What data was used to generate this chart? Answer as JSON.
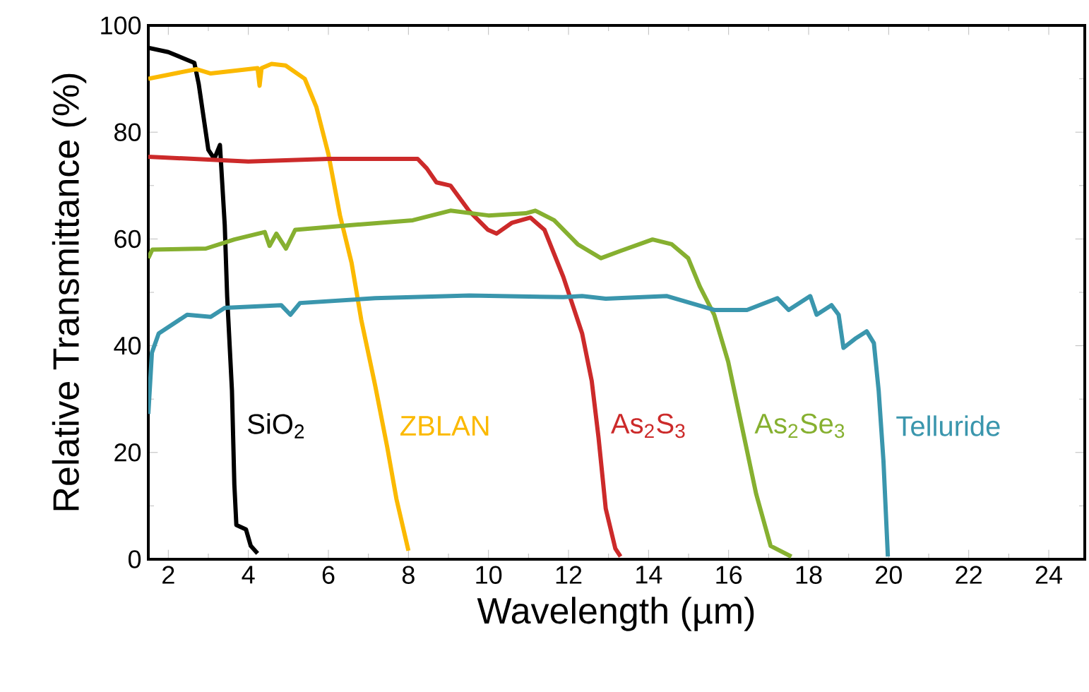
{
  "chart_data": {
    "type": "line",
    "xlabel": "Wavelength (µm)",
    "ylabel": "Relative Transmittance (%)",
    "xlim": [
      1.5,
      24.9
    ],
    "ylim": [
      0,
      100
    ],
    "xticks": [
      2,
      4,
      6,
      8,
      10,
      12,
      14,
      16,
      18,
      20,
      22,
      24
    ],
    "yticks": [
      0,
      20,
      40,
      60,
      80,
      100
    ],
    "grid": false,
    "legend": false,
    "marker": "none",
    "line_style": "solid",
    "series": [
      {
        "name": "SiO$_{2}$",
        "color": "#000000",
        "x": [
          1.5,
          2.0,
          2.65,
          2.76,
          3.0,
          3.15,
          3.29,
          3.41,
          3.47,
          3.59,
          3.65,
          3.7,
          3.94,
          4.06,
          4.23
        ],
        "values": [
          95.8,
          95,
          93,
          89,
          76.7,
          75,
          77.6,
          62.6,
          49.3,
          31.6,
          14,
          6.4,
          5.6,
          2.5,
          1.1
        ]
      },
      {
        "name": "ZBLAN",
        "color": "#fbb900",
        "x": [
          1.5,
          2.7,
          3.06,
          4.23,
          4.28,
          4.33,
          4.58,
          4.93,
          5.41,
          5.7,
          6.0,
          6.29,
          6.58,
          6.82,
          7.17,
          7.47,
          7.7,
          8.0
        ],
        "values": [
          90,
          91.8,
          91,
          92,
          88.7,
          92,
          92.8,
          92.5,
          90,
          84.7,
          75.9,
          64.4,
          55.5,
          44.9,
          32.5,
          21,
          11.3,
          1.6
        ]
      },
      {
        "name": "As$_{2}$S$_{3}$",
        "color": "#cc2a2a",
        "x": [
          1.5,
          4.0,
          6.0,
          8.23,
          8.46,
          8.7,
          9.05,
          9.51,
          9.99,
          10.2,
          10.58,
          11.05,
          11.4,
          11.87,
          12.34,
          12.58,
          12.75,
          12.93,
          13.17,
          13.3
        ],
        "values": [
          75.4,
          74.5,
          75,
          75,
          73.2,
          70.6,
          70,
          65.3,
          61.7,
          61,
          63,
          64,
          61.7,
          52.9,
          42.3,
          33.4,
          22.8,
          9.5,
          2,
          0.5
        ]
      },
      {
        "name": "As$_{2}$Se$_{3}$",
        "color": "#86b030",
        "x": [
          1.5,
          1.6,
          2.94,
          3.65,
          4.41,
          4.53,
          4.7,
          4.94,
          5.17,
          6.58,
          8.11,
          9.05,
          10.0,
          10.93,
          11.17,
          11.64,
          12.23,
          12.81,
          13.28,
          14.1,
          14.58,
          14.99,
          15.28,
          15.64,
          15.99,
          16.34,
          16.69,
          17.05,
          17.57
        ],
        "values": [
          56.4,
          58,
          58.2,
          59.9,
          61.3,
          58.7,
          61,
          58.2,
          61.7,
          62.6,
          63.5,
          65.3,
          64.4,
          64.8,
          65.3,
          63.5,
          59,
          56.4,
          57.7,
          59.9,
          59,
          56.4,
          51.1,
          45.8,
          37,
          24.6,
          12.2,
          2.5,
          0.5
        ]
      },
      {
        "name": "Telluride",
        "color": "#3a96ad",
        "x": [
          1.5,
          1.59,
          1.76,
          2.47,
          3.06,
          3.41,
          4.82,
          5.05,
          5.29,
          7.17,
          9.52,
          11.87,
          12.34,
          12.93,
          14.46,
          15.64,
          16.46,
          17.22,
          17.5,
          18.04,
          18.2,
          18.57,
          18.75,
          18.87,
          19.16,
          19.45,
          19.63,
          19.75,
          19.87,
          19.98
        ],
        "values": [
          27.2,
          38.7,
          42.3,
          45.8,
          45.4,
          47.1,
          47.6,
          45.8,
          48,
          48.9,
          49.4,
          49.1,
          49.3,
          48.8,
          49.3,
          46.7,
          46.7,
          48.9,
          46.7,
          49.3,
          45.8,
          47.6,
          45.8,
          39.6,
          41.3,
          42.7,
          40.5,
          31.6,
          18.4,
          0.5
        ]
      }
    ]
  }
}
